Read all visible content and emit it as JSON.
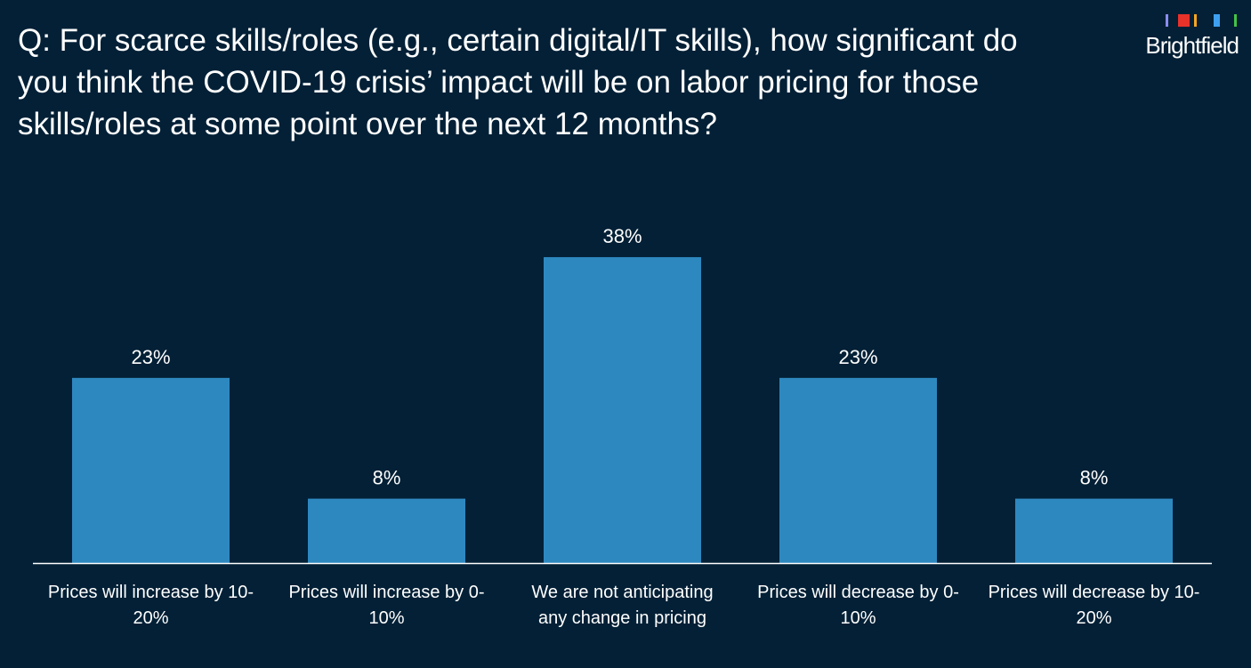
{
  "slide": {
    "title": "Q: For scarce skills/roles (e.g., certain digital/IT skills), how significant do you think the COVID-19 crisis’ impact will be on labor pricing for those skills/roles at some point over the next 12 months?",
    "background_color": "#032036"
  },
  "logo": {
    "text": "Brightfield",
    "mark_colors": [
      "#8a8cf0",
      "#e8322a",
      "#f5a623",
      "#3ea0f0",
      "#44c24a"
    ]
  },
  "chart_data": {
    "type": "bar",
    "categories": [
      [
        "Prices will increase by 10-",
        "20%"
      ],
      [
        "Prices will increase by 0-",
        "10%"
      ],
      [
        "We are not anticipating",
        "any change in pricing"
      ],
      [
        "Prices will decrease by 0-",
        "10%"
      ],
      [
        "Prices will decrease by 10-",
        "20%"
      ]
    ],
    "values": [
      23,
      8,
      38,
      23,
      8
    ],
    "value_labels": [
      "23%",
      "8%",
      "38%",
      "23%",
      "8%"
    ],
    "ylim": [
      0,
      40
    ],
    "grid": false,
    "legend": "none",
    "bar_color": "#2e88c0",
    "axis_color": "#ffffff"
  }
}
